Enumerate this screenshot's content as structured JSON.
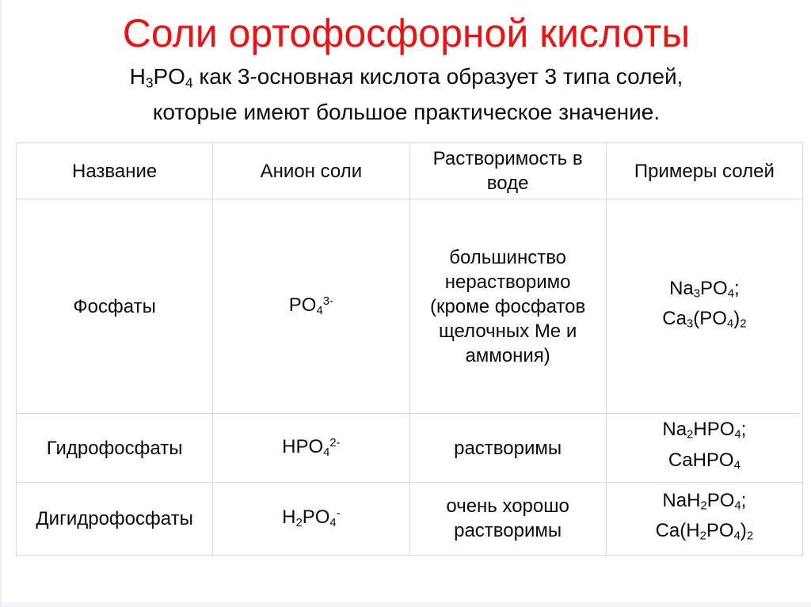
{
  "slide": {
    "title": "Соли ортофосфорной кислоты",
    "subtitle": "H_{3}PO_{4} как 3-основная кислота образует 3 типа солей,\nкоторые имеют большое практическое значение."
  },
  "table": {
    "headers": [
      "Название",
      "Анион соли",
      "Растворимость в воде",
      "Примеры солей"
    ],
    "rows": [
      {
        "name": "Фосфаты",
        "anion": "PO_{4}^{3-}",
        "solubility": "большинство нерастворимо (кроме фосфатов щелочных Me и аммония)",
        "examples": "Na_{3}PO_{4};\nCa_{3}(PO_{4})_{2}"
      },
      {
        "name": "Гидрофосфаты",
        "anion": "HPO_{4}^{2-}",
        "solubility": "растворимы",
        "examples": "Na_{2}HPO_{4};\nCaHPO_{4}"
      },
      {
        "name": "Дигидрофосфаты",
        "anion": "H_{2}PO_{4}^{-}",
        "solubility": "очень хорошо растворимы",
        "examples": "NaH_{2}PO_{4};\nCa(H_{2}PO_{4})_{2}"
      }
    ]
  },
  "colors": {
    "title": "#ee1111",
    "text": "#0b0b0b",
    "border": "#d9d9e0",
    "background": "#ffffff"
  }
}
